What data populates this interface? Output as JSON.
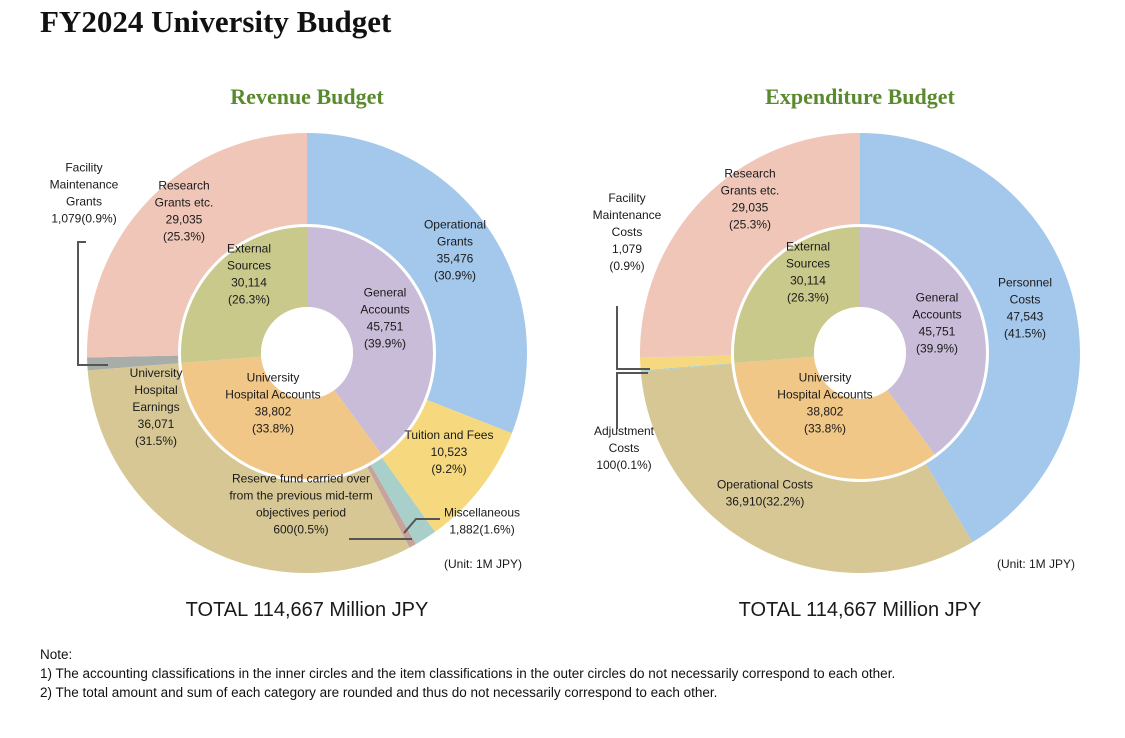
{
  "title": "FY2024 University Budget",
  "chart_data": [
    {
      "type": "pie",
      "title": "Revenue Budget",
      "unit": "(Unit: 1M JPY)",
      "total": "TOTAL 114,667 Million JPY",
      "outer": [
        {
          "name": "Operational Grants",
          "value": 35476,
          "percent": 30.9,
          "color": "#a4c7ec",
          "lines": [
            "Operational",
            "Grants",
            "35,476",
            "(30.9%)"
          ]
        },
        {
          "name": "Tuition and Fees",
          "value": 10523,
          "percent": 9.2,
          "color": "#f6d97e",
          "lines": [
            "Tuition and Fees",
            "10,523",
            "(9.2%)"
          ]
        },
        {
          "name": "Miscellaneous",
          "value": 1882,
          "percent": 1.6,
          "color": "#a8cfc9",
          "lines": [
            "Miscellaneous",
            "1,882(1.6%)"
          ]
        },
        {
          "name": "Reserve fund carried over from the previous mid-term objectives period",
          "value": 600,
          "percent": 0.5,
          "color": "#c6a49b",
          "lines": [
            "Reserve fund carried over",
            "from the previous mid-term",
            "objectives period",
            "600(0.5%)"
          ]
        },
        {
          "name": "University Hospital Earnings",
          "value": 36071,
          "percent": 31.5,
          "color": "#d6c795",
          "lines": [
            "University",
            "Hospital",
            "Earnings",
            "36,071",
            "(31.5%)"
          ]
        },
        {
          "name": "Facility Maintenance Grants",
          "value": 1079,
          "percent": 0.9,
          "color": "#a8adaa",
          "lines": [
            "Facility",
            "Maintenance",
            "Grants",
            "1,079(0.9%)"
          ]
        },
        {
          "name": "Research Grants etc.",
          "value": 29035,
          "percent": 25.3,
          "color": "#efc6b8",
          "lines": [
            "Research",
            "Grants etc.",
            "29,035",
            "(25.3%)"
          ]
        }
      ],
      "inner": [
        {
          "name": "General Accounts",
          "value": 45751,
          "percent": 39.9,
          "color": "#c9bcd8",
          "lines": [
            "General",
            "Accounts",
            "45,751",
            "(39.9%)"
          ]
        },
        {
          "name": "University Hospital Accounts",
          "value": 38802,
          "percent": 33.8,
          "color": "#f1c788",
          "lines": [
            "University",
            "Hospital Accounts",
            "38,802",
            "(33.8%)"
          ]
        },
        {
          "name": "External Sources",
          "value": 30114,
          "percent": 26.3,
          "color": "#c9c98c",
          "lines": [
            "External",
            "Sources",
            "30,114",
            "(26.3%)"
          ]
        }
      ]
    },
    {
      "type": "pie",
      "title": "Expenditure Budget",
      "unit": "(Unit: 1M JPY)",
      "total": "TOTAL 114,667 Million JPY",
      "outer": [
        {
          "name": "Personnel Costs",
          "value": 47543,
          "percent": 41.5,
          "color": "#a4c7ec",
          "lines": [
            "Personnel",
            "Costs",
            "47,543",
            "(41.5%)"
          ]
        },
        {
          "name": "Operational Costs",
          "value": 36910,
          "percent": 32.2,
          "color": "#d6c795",
          "lines": [
            "Operational Costs",
            "36,910(32.2%)"
          ]
        },
        {
          "name": "Adjustment Costs",
          "value": 100,
          "percent": 0.1,
          "color": "#a8cfc9",
          "lines": [
            "Adjustment",
            "Costs",
            "100(0.1%)"
          ]
        },
        {
          "name": "Facility Maintenance Costs",
          "value": 1079,
          "percent": 0.9,
          "color": "#f6d97e",
          "lines": [
            "Facility",
            "Maintenance",
            "Costs",
            "1,079",
            "(0.9%)"
          ]
        },
        {
          "name": "Research Grants etc.",
          "value": 29035,
          "percent": 25.3,
          "color": "#efc6b8",
          "lines": [
            "Research",
            "Grants etc.",
            "29,035",
            "(25.3%)"
          ]
        }
      ],
      "inner": [
        {
          "name": "General Accounts",
          "value": 45751,
          "percent": 39.9,
          "color": "#c9bcd8",
          "lines": [
            "General",
            "Accounts",
            "45,751",
            "(39.9%)"
          ]
        },
        {
          "name": "University Hospital Accounts",
          "value": 38802,
          "percent": 33.8,
          "color": "#f1c788",
          "lines": [
            "University",
            "Hospital Accounts",
            "38,802",
            "(33.8%)"
          ]
        },
        {
          "name": "External Sources",
          "value": 30114,
          "percent": 26.3,
          "color": "#c9c98c",
          "lines": [
            "External",
            "Sources",
            "30,114",
            "(26.3%)"
          ]
        }
      ]
    }
  ],
  "notes": {
    "heading": "Note:",
    "items": [
      "1) The accounting classifications in the inner circles and the item classifications in the outer circles do not necessarily correspond to each other.",
      "2) The total amount and sum of each category are rounded and thus do not necessarily correspond to each other."
    ]
  }
}
